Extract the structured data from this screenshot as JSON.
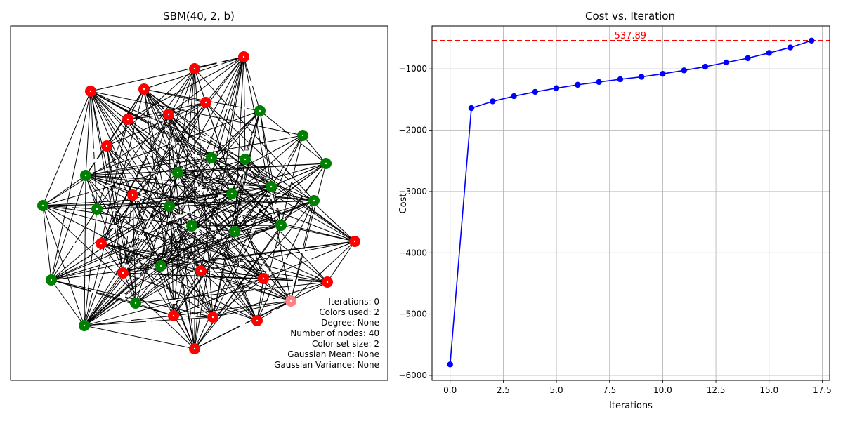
{
  "graph_panel": {
    "title": "SBM(40, 2, b)",
    "info_lines": [
      "Iterations: 0",
      "Colors used: 2",
      "Degree: None",
      "Number of nodes: 40",
      "Color set size: 2",
      "Gaussian Mean: None",
      "Gaussian Variance: None"
    ],
    "node_colors": {
      "red": "#ff0000",
      "green": "#008000",
      "highlight": "#ff8080"
    },
    "edge_color": "#000000",
    "nodes": [
      {
        "color": "red"
      },
      {
        "color": "red"
      },
      {
        "color": "red"
      },
      {
        "color": "red"
      },
      {
        "color": "red"
      },
      {
        "color": "red"
      },
      {
        "color": "red"
      },
      {
        "color": "red"
      },
      {
        "color": "red"
      },
      {
        "color": "red"
      },
      {
        "color": "red"
      },
      {
        "color": "red"
      },
      {
        "color": "red"
      },
      {
        "color": "red"
      },
      {
        "color": "red"
      },
      {
        "color": "red"
      },
      {
        "color": "red"
      },
      {
        "color": "red"
      },
      {
        "color": "red"
      },
      {
        "color": "highlight"
      },
      {
        "color": "green"
      },
      {
        "color": "green"
      },
      {
        "color": "green"
      },
      {
        "color": "green"
      },
      {
        "color": "green"
      },
      {
        "color": "green"
      },
      {
        "color": "green"
      },
      {
        "color": "green"
      },
      {
        "color": "green"
      },
      {
        "color": "green"
      },
      {
        "color": "green"
      },
      {
        "color": "green"
      },
      {
        "color": "green"
      },
      {
        "color": "green"
      },
      {
        "color": "green"
      },
      {
        "color": "green"
      },
      {
        "color": "green"
      },
      {
        "color": "green"
      },
      {
        "color": "green"
      },
      {
        "color": "green"
      }
    ]
  },
  "chart_data": {
    "type": "line",
    "title": "Cost vs. Iteration",
    "xlabel": "Iterations",
    "ylabel": "Cost",
    "xlim": [
      -0.85,
      17.85
    ],
    "ylim": [
      -6080,
      -300
    ],
    "xticks": [
      0.0,
      2.5,
      5.0,
      7.5,
      10.0,
      12.5,
      15.0,
      17.5
    ],
    "xtick_labels": [
      "0.0",
      "2.5",
      "5.0",
      "7.5",
      "10.0",
      "12.5",
      "15.0",
      "17.5"
    ],
    "yticks": [
      -6000,
      -5000,
      -4000,
      -3000,
      -2000,
      -1000
    ],
    "ytick_labels": [
      "−6000",
      "−5000",
      "−4000",
      "−3000",
      "−2000",
      "−1000"
    ],
    "grid": true,
    "series": [
      {
        "color": "#0000ff",
        "marker": "circle",
        "x": [
          0,
          1,
          2,
          3,
          4,
          5,
          6,
          7,
          8,
          9,
          10,
          11,
          12,
          13,
          14,
          15,
          16,
          17
        ],
        "y": [
          -5820,
          -1640,
          -1530,
          -1445,
          -1375,
          -1315,
          -1260,
          -1215,
          -1170,
          -1130,
          -1080,
          -1025,
          -965,
          -895,
          -825,
          -740,
          -650,
          -537.89
        ]
      }
    ],
    "reference_line": {
      "value": -537.89,
      "label": "-537.89",
      "color": "#ff0000",
      "style": "dashed"
    }
  }
}
